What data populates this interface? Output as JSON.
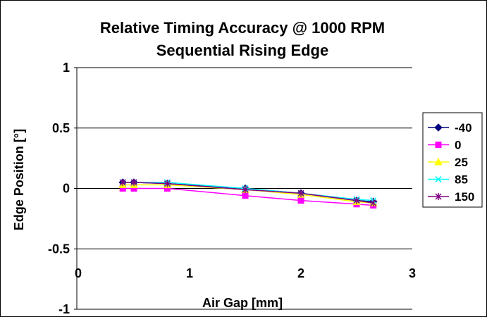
{
  "chart_data": {
    "type": "line",
    "title": "Relative Timing Accuracy @ 1000 RPM",
    "subtitle": "Sequential Rising Edge",
    "xlabel": "Air Gap [mm]",
    "ylabel": "Edge Position [°]",
    "xlim": [
      0,
      3
    ],
    "ylim": [
      -1,
      1
    ],
    "xticks": [
      0,
      1,
      2,
      3
    ],
    "yticks": [
      1,
      0.5,
      0,
      -0.5,
      -1
    ],
    "ytick_labels": [
      "1",
      "0.5",
      "0",
      "-0.5",
      "-1"
    ],
    "grid": "horizontal",
    "legend_position": "right",
    "x": [
      0.4,
      0.5,
      0.8,
      1.5,
      2.0,
      2.5,
      2.65
    ],
    "series": [
      {
        "name": "-40",
        "color": "#000080",
        "marker": "diamond",
        "values": [
          0.05,
          0.05,
          0.04,
          0.0,
          -0.04,
          -0.1,
          -0.11
        ]
      },
      {
        "name": "0",
        "color": "#FF00FF",
        "marker": "square",
        "values": [
          0.0,
          0.0,
          0.0,
          -0.06,
          -0.1,
          -0.13,
          -0.14
        ]
      },
      {
        "name": "25",
        "color": "#FFFF00",
        "marker": "triangle",
        "values": [
          0.03,
          0.03,
          0.03,
          -0.01,
          -0.05,
          -0.11,
          -0.12
        ]
      },
      {
        "name": "85",
        "color": "#00FFFF",
        "marker": "x",
        "values": [
          0.05,
          0.05,
          0.05,
          0.0,
          -0.04,
          -0.09,
          -0.1
        ]
      },
      {
        "name": "150",
        "color": "#800080",
        "marker": "star",
        "values": [
          0.05,
          0.05,
          0.04,
          -0.01,
          -0.04,
          -0.1,
          -0.12
        ]
      }
    ]
  }
}
